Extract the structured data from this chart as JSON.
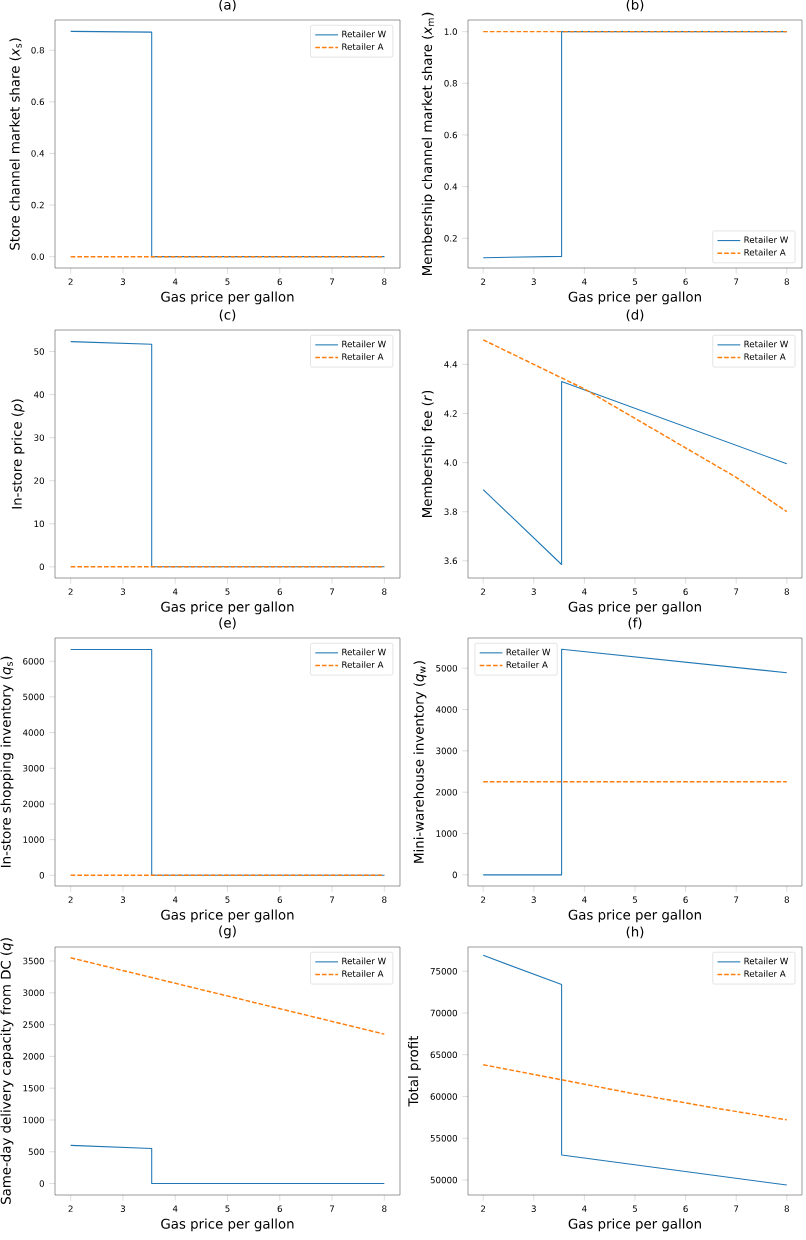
{
  "chart_data": [
    {
      "type": "line",
      "title": "(a)",
      "xlabel": "Gas price per gallon",
      "ylabel": "Store channel market share (*x*$_{s}$)",
      "xlim": [
        1.7,
        8.3
      ],
      "ylim": [
        -0.044,
        0.917
      ],
      "xticks": [
        2,
        3,
        4,
        5,
        6,
        7,
        8
      ],
      "yticks": [
        {
          "value": 0,
          "label": "0.0"
        },
        0.2,
        0.4,
        0.6,
        0.8
      ],
      "legend": "top right",
      "series": [
        {
          "name": "Retailer W",
          "color": "#1f77b4",
          "line_style": "solid",
          "x": [
            2,
            3.55,
            3.55,
            8
          ],
          "values": [
            0.873,
            0.87,
            0,
            0
          ]
        },
        {
          "name": "Retailer A",
          "color": "#ff7f0e",
          "line_style": "dashed",
          "x": [
            2,
            8
          ],
          "values": [
            0,
            0
          ]
        }
      ]
    },
    {
      "type": "line",
      "title": "(b)",
      "xlabel": "Gas price per gallon",
      "ylabel": "Membership channel market share (*x*$_{m}$)",
      "xlim": [
        1.7,
        8.3
      ],
      "ylim": [
        0.085,
        1.045
      ],
      "xticks": [
        2,
        3,
        4,
        5,
        6,
        7,
        8
      ],
      "yticks": [
        0.2,
        0.4,
        0.6,
        0.8,
        {
          "value": 1,
          "label": "1.0"
        }
      ],
      "legend": "bottom right",
      "series": [
        {
          "name": "Retailer W",
          "color": "#1f77b4",
          "line_style": "solid",
          "x": [
            2,
            3.55,
            3.55,
            8
          ],
          "values": [
            0.125,
            0.13,
            1,
            1
          ]
        },
        {
          "name": "Retailer A",
          "color": "#ff7f0e",
          "line_style": "dashed",
          "x": [
            2,
            8
          ],
          "values": [
            1,
            1
          ]
        }
      ]
    },
    {
      "type": "line",
      "title": "(c)",
      "xlabel": "Gas price per gallon",
      "ylabel": "In-store price (*p*)",
      "xlim": [
        1.7,
        8.3
      ],
      "ylim": [
        -2.6,
        55
      ],
      "xticks": [
        2,
        3,
        4,
        5,
        6,
        7,
        8
      ],
      "yticks": [
        0,
        10,
        20,
        30,
        40,
        50
      ],
      "legend": "top right",
      "series": [
        {
          "name": "Retailer W",
          "color": "#1f77b4",
          "line_style": "solid",
          "x": [
            2,
            3.55,
            3.55,
            8
          ],
          "values": [
            52.3,
            51.7,
            0,
            0
          ]
        },
        {
          "name": "Retailer A",
          "color": "#ff7f0e",
          "line_style": "dashed",
          "x": [
            2,
            8
          ],
          "values": [
            0,
            0
          ]
        }
      ]
    },
    {
      "type": "line",
      "title": "(d)",
      "xlabel": "Gas price per gallon",
      "ylabel": "Membership fee (*r*)",
      "xlim": [
        1.7,
        8.3
      ],
      "ylim": [
        3.53,
        4.54
      ],
      "xticks": [
        2,
        3,
        4,
        5,
        6,
        7,
        8
      ],
      "yticks": [
        3.6,
        3.8,
        {
          "value": 4,
          "label": "4.0"
        },
        4.2,
        4.4
      ],
      "legend": "top right",
      "series": [
        {
          "name": "Retailer W",
          "color": "#1f77b4",
          "line_style": "solid",
          "x": [
            2,
            3.55,
            3.55,
            8
          ],
          "values": [
            3.89,
            3.585,
            4.33,
            3.995
          ]
        },
        {
          "name": "Retailer A",
          "color": "#ff7f0e",
          "line_style": "dashed",
          "x": [
            2,
            3,
            4,
            5,
            6,
            7,
            8
          ],
          "values": [
            4.5,
            4.4,
            4.3,
            4.18,
            4.06,
            3.94,
            3.8
          ]
        }
      ]
    },
    {
      "type": "line",
      "title": "(e)",
      "xlabel": "Gas price per gallon",
      "ylabel": "In-store shopping inventory (*q*$_{s}$)",
      "xlim": [
        1.7,
        8.3
      ],
      "ylim": [
        -300,
        6650
      ],
      "xticks": [
        2,
        3,
        4,
        5,
        6,
        7,
        8
      ],
      "yticks": [
        0,
        1000,
        2000,
        3000,
        4000,
        5000,
        6000
      ],
      "legend": "top right",
      "series": [
        {
          "name": "Retailer W",
          "color": "#1f77b4",
          "line_style": "solid",
          "x": [
            2,
            3.55,
            3.55,
            8
          ],
          "values": [
            6330,
            6330,
            0,
            0
          ]
        },
        {
          "name": "Retailer A",
          "color": "#ff7f0e",
          "line_style": "dashed",
          "x": [
            2,
            8
          ],
          "values": [
            0,
            0
          ]
        }
      ]
    },
    {
      "type": "line",
      "title": "(f)",
      "xlabel": "Gas price per gallon",
      "ylabel": "Mini-warehouse inventory (*q*$_{w}$)",
      "xlim": [
        1.7,
        8.3
      ],
      "ylim": [
        -270,
        5730
      ],
      "xticks": [
        2,
        3,
        4,
        5,
        6,
        7,
        8
      ],
      "yticks": [
        0,
        1000,
        2000,
        3000,
        4000,
        5000
      ],
      "legend": "top left",
      "series": [
        {
          "name": "Retailer W",
          "color": "#1f77b4",
          "line_style": "solid",
          "x": [
            2,
            3.55,
            3.55,
            8
          ],
          "values": [
            0,
            0,
            5460,
            4890
          ]
        },
        {
          "name": "Retailer A",
          "color": "#ff7f0e",
          "line_style": "dashed",
          "x": [
            2,
            8
          ],
          "values": [
            2250,
            2250
          ]
        }
      ]
    },
    {
      "type": "line",
      "title": "(g)",
      "xlabel": "Gas price per gallon",
      "ylabel": "Same-day delivery capacity from DC (*q*)",
      "xlim": [
        1.7,
        8.3
      ],
      "ylim": [
        -180,
        3720
      ],
      "xticks": [
        2,
        3,
        4,
        5,
        6,
        7,
        8
      ],
      "yticks": [
        0,
        500,
        1000,
        1500,
        2000,
        2500,
        3000,
        3500
      ],
      "legend": "top right",
      "series": [
        {
          "name": "Retailer W",
          "color": "#1f77b4",
          "line_style": "solid",
          "x": [
            2,
            3.55,
            3.55,
            8
          ],
          "values": [
            600,
            550,
            0,
            0
          ]
        },
        {
          "name": "Retailer A",
          "color": "#ff7f0e",
          "line_style": "dashed",
          "x": [
            2,
            8
          ],
          "values": [
            3550,
            2350
          ]
        }
      ]
    },
    {
      "type": "line",
      "title": "(h)",
      "xlabel": "Gas price per gallon",
      "ylabel": "Total profit",
      "xlim": [
        1.7,
        8.3
      ],
      "ylim": [
        48200,
        77900
      ],
      "xticks": [
        2,
        3,
        4,
        5,
        6,
        7,
        8
      ],
      "yticks": [
        50000,
        55000,
        60000,
        65000,
        70000,
        75000
      ],
      "legend": "top right",
      "series": [
        {
          "name": "Retailer W",
          "color": "#1f77b4",
          "line_style": "solid",
          "x": [
            2,
            3.55,
            3.55,
            8
          ],
          "values": [
            76900,
            73400,
            53000,
            49400
          ]
        },
        {
          "name": "Retailer A",
          "color": "#ff7f0e",
          "line_style": "dashed",
          "x": [
            2,
            3.55,
            5,
            6.5,
            8
          ],
          "values": [
            63800,
            62000,
            60300,
            58700,
            57200
          ]
        }
      ]
    }
  ]
}
